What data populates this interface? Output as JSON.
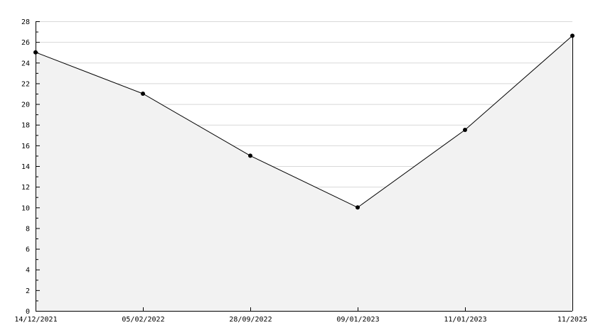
{
  "chart_data": {
    "type": "area",
    "title": "",
    "xlabel": "",
    "ylabel": "",
    "categories": [
      "14/12/2021",
      "05/02/2022",
      "28/09/2022",
      "09/01/2023",
      "11/01/2023",
      "11/2025"
    ],
    "values": [
      25,
      21,
      15,
      10,
      17.5,
      26.6
    ],
    "ylim": [
      0,
      28
    ],
    "yticks": [
      0,
      2,
      4,
      6,
      8,
      10,
      12,
      14,
      16,
      18,
      20,
      22,
      24,
      26,
      28
    ],
    "grid": true,
    "colors": {
      "fill": "#f2f2f2",
      "line": "#000000",
      "grid": "#d8d8d8",
      "marker": "#000000"
    }
  }
}
